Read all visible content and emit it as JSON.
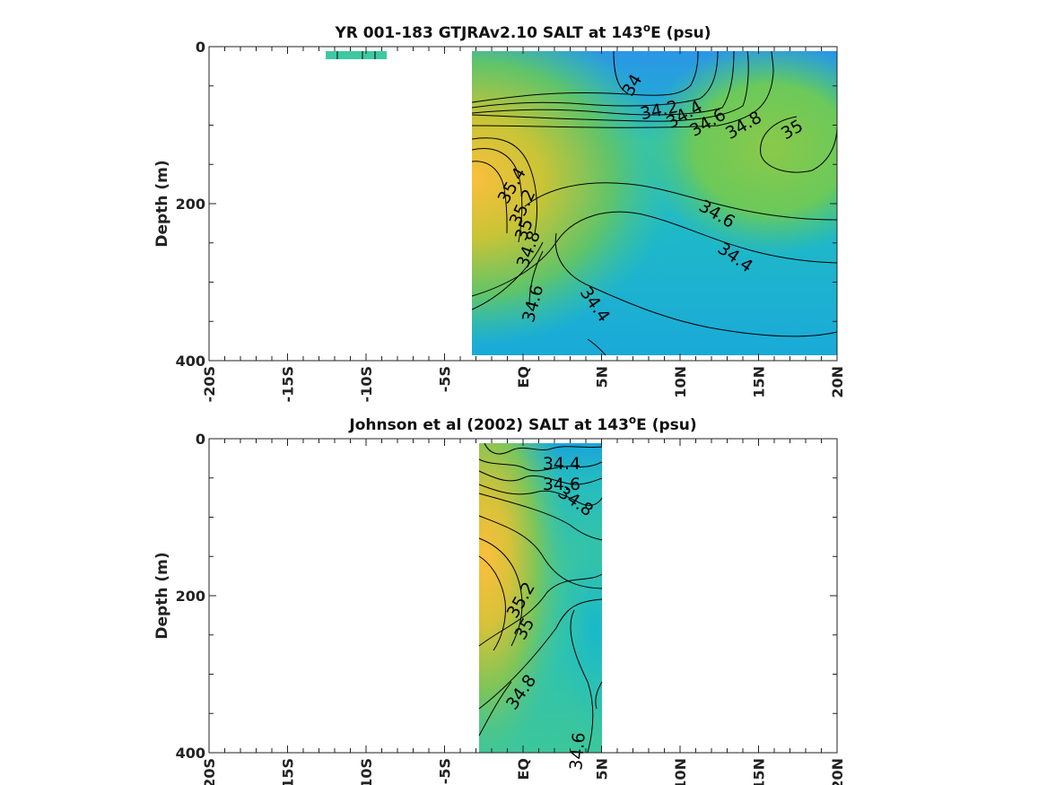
{
  "chart_data": [
    {
      "type": "heatmap",
      "title": "YR 001-183 GTJRAv2.10 SALT at 143",
      "title_sup": "o",
      "title_suffix": "E (psu)",
      "ylabel": "Depth (m)",
      "xlim": [
        -20,
        20
      ],
      "ylim": [
        400,
        0
      ],
      "xticks": [
        "-20S",
        "-15S",
        "-10S",
        "-5S",
        "EQ",
        "5N",
        "10N",
        "15N",
        "20N"
      ],
      "yticks": [
        "0",
        "200",
        "400"
      ],
      "field_extent": {
        "lat": [
          -3.5,
          20
        ],
        "depth": [
          5,
          395
        ]
      },
      "surface_strip": {
        "lat": [
          -12.5,
          -8.5
        ],
        "depth": [
          5,
          14
        ]
      },
      "contour_labels": [
        "34",
        "34.2",
        "34.4",
        "34.6",
        "34.8",
        "35",
        "35.4",
        "35.2",
        "35",
        "34.8",
        "34.6",
        "34.6",
        "34.4",
        "34.4"
      ]
    },
    {
      "type": "heatmap",
      "title": "Johnson et al (2002) SALT at 143",
      "title_sup": "o",
      "title_suffix": "E (psu)",
      "ylabel": "Depth (m)",
      "xlim": [
        -20,
        20
      ],
      "ylim": [
        400,
        0
      ],
      "xticks": [
        "-20S",
        "-15S",
        "-10S",
        "-5S",
        "EQ",
        "5N",
        "10N",
        "15N",
        "20N"
      ],
      "yticks": [
        "0",
        "200",
        "400"
      ],
      "field_extent": {
        "lat": [
          -3,
          5
        ],
        "depth": [
          5,
          400
        ]
      },
      "contour_labels": [
        "34.4",
        "34.6",
        "34.8",
        "35.2",
        "35",
        "34.8",
        "34.6"
      ]
    }
  ]
}
